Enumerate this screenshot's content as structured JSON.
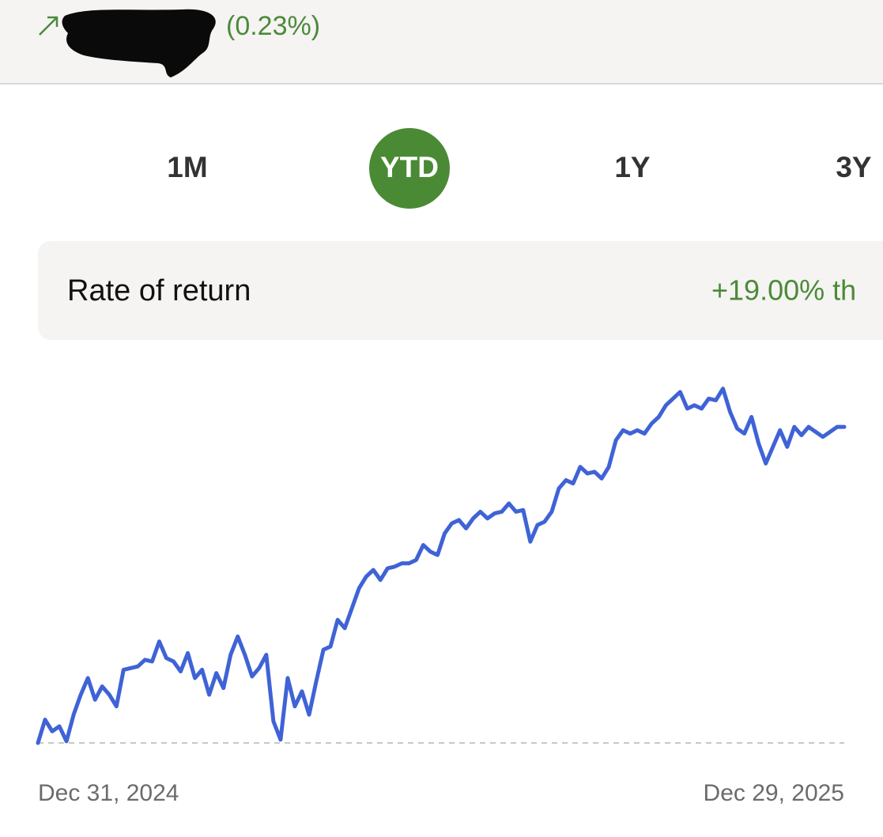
{
  "header": {
    "change": "(0.23%)"
  },
  "tabs": [
    "1M",
    "YTD",
    "1Y",
    "3Y"
  ],
  "summary": {
    "label": "Rate of return",
    "value": "+19.00% th"
  },
  "chart_data": {
    "type": "line",
    "categories": [
      "Dec 31, 2024",
      null,
      null,
      null,
      null,
      null,
      null,
      null,
      null,
      null,
      null,
      null,
      null,
      null,
      null,
      null,
      null,
      null,
      null,
      null,
      null,
      null,
      null,
      null,
      null,
      null,
      null,
      null,
      null,
      null,
      null,
      null,
      null,
      null,
      null,
      null,
      null,
      null,
      null,
      null,
      null,
      null,
      null,
      null,
      null,
      null,
      null,
      null,
      null,
      null,
      null,
      null,
      null,
      null,
      null,
      null,
      null,
      null,
      null,
      null,
      null,
      null,
      null,
      null,
      null,
      null,
      null,
      null,
      null,
      null,
      null,
      null,
      null,
      null,
      null,
      null,
      null,
      null,
      null,
      null,
      null,
      null,
      null,
      null,
      null,
      null,
      null,
      null,
      null,
      null,
      null,
      null,
      null,
      null,
      null,
      null,
      null,
      null,
      null,
      null,
      null,
      null,
      null,
      null,
      null,
      null,
      null,
      null,
      null,
      null,
      null,
      null,
      null,
      "Dec 29, 2025"
    ],
    "series": [
      {
        "color": "#3f63d6",
        "values": [
          0,
          1.4,
          0.7,
          1.0,
          0.1,
          1.7,
          2.9,
          3.9,
          2.6,
          3.4,
          2.9,
          2.2,
          4.4,
          4.5,
          4.6,
          5.0,
          4.9,
          6.1,
          5.1,
          4.9,
          4.3,
          5.4,
          3.9,
          4.4,
          2.9,
          4.2,
          3.3,
          5.3,
          6.4,
          5.3,
          4.0,
          4.5,
          5.3,
          1.3,
          0.2,
          3.9,
          2.2,
          3.1,
          1.7,
          3.7,
          5.6,
          5.8,
          7.4,
          6.9,
          8.1,
          9.3,
          10.0,
          10.4,
          9.8,
          10.5,
          10.6,
          10.8,
          10.8,
          11.0,
          11.9,
          11.5,
          11.3,
          12.6,
          13.2,
          13.4,
          12.9,
          13.5,
          13.9,
          13.5,
          13.8,
          13.9,
          14.4,
          13.9,
          14.0,
          12.1,
          13.1,
          13.3,
          13.9,
          15.3,
          15.8,
          15.6,
          16.6,
          16.2,
          16.3,
          15.9,
          16.6,
          18.2,
          18.8,
          18.6,
          18.8,
          18.6,
          19.2,
          19.6,
          20.3,
          20.7,
          21.1,
          20.1,
          20.3,
          20.1,
          20.7,
          20.6,
          21.3,
          19.9,
          18.9,
          18.6,
          19.6,
          18.0,
          16.8,
          17.8,
          18.8,
          17.8,
          19.0,
          18.5,
          19.0,
          18.7,
          18.4,
          18.7,
          19.0,
          19.0
        ]
      }
    ],
    "ylim": [
      0,
      22
    ],
    "baseline": 0
  }
}
